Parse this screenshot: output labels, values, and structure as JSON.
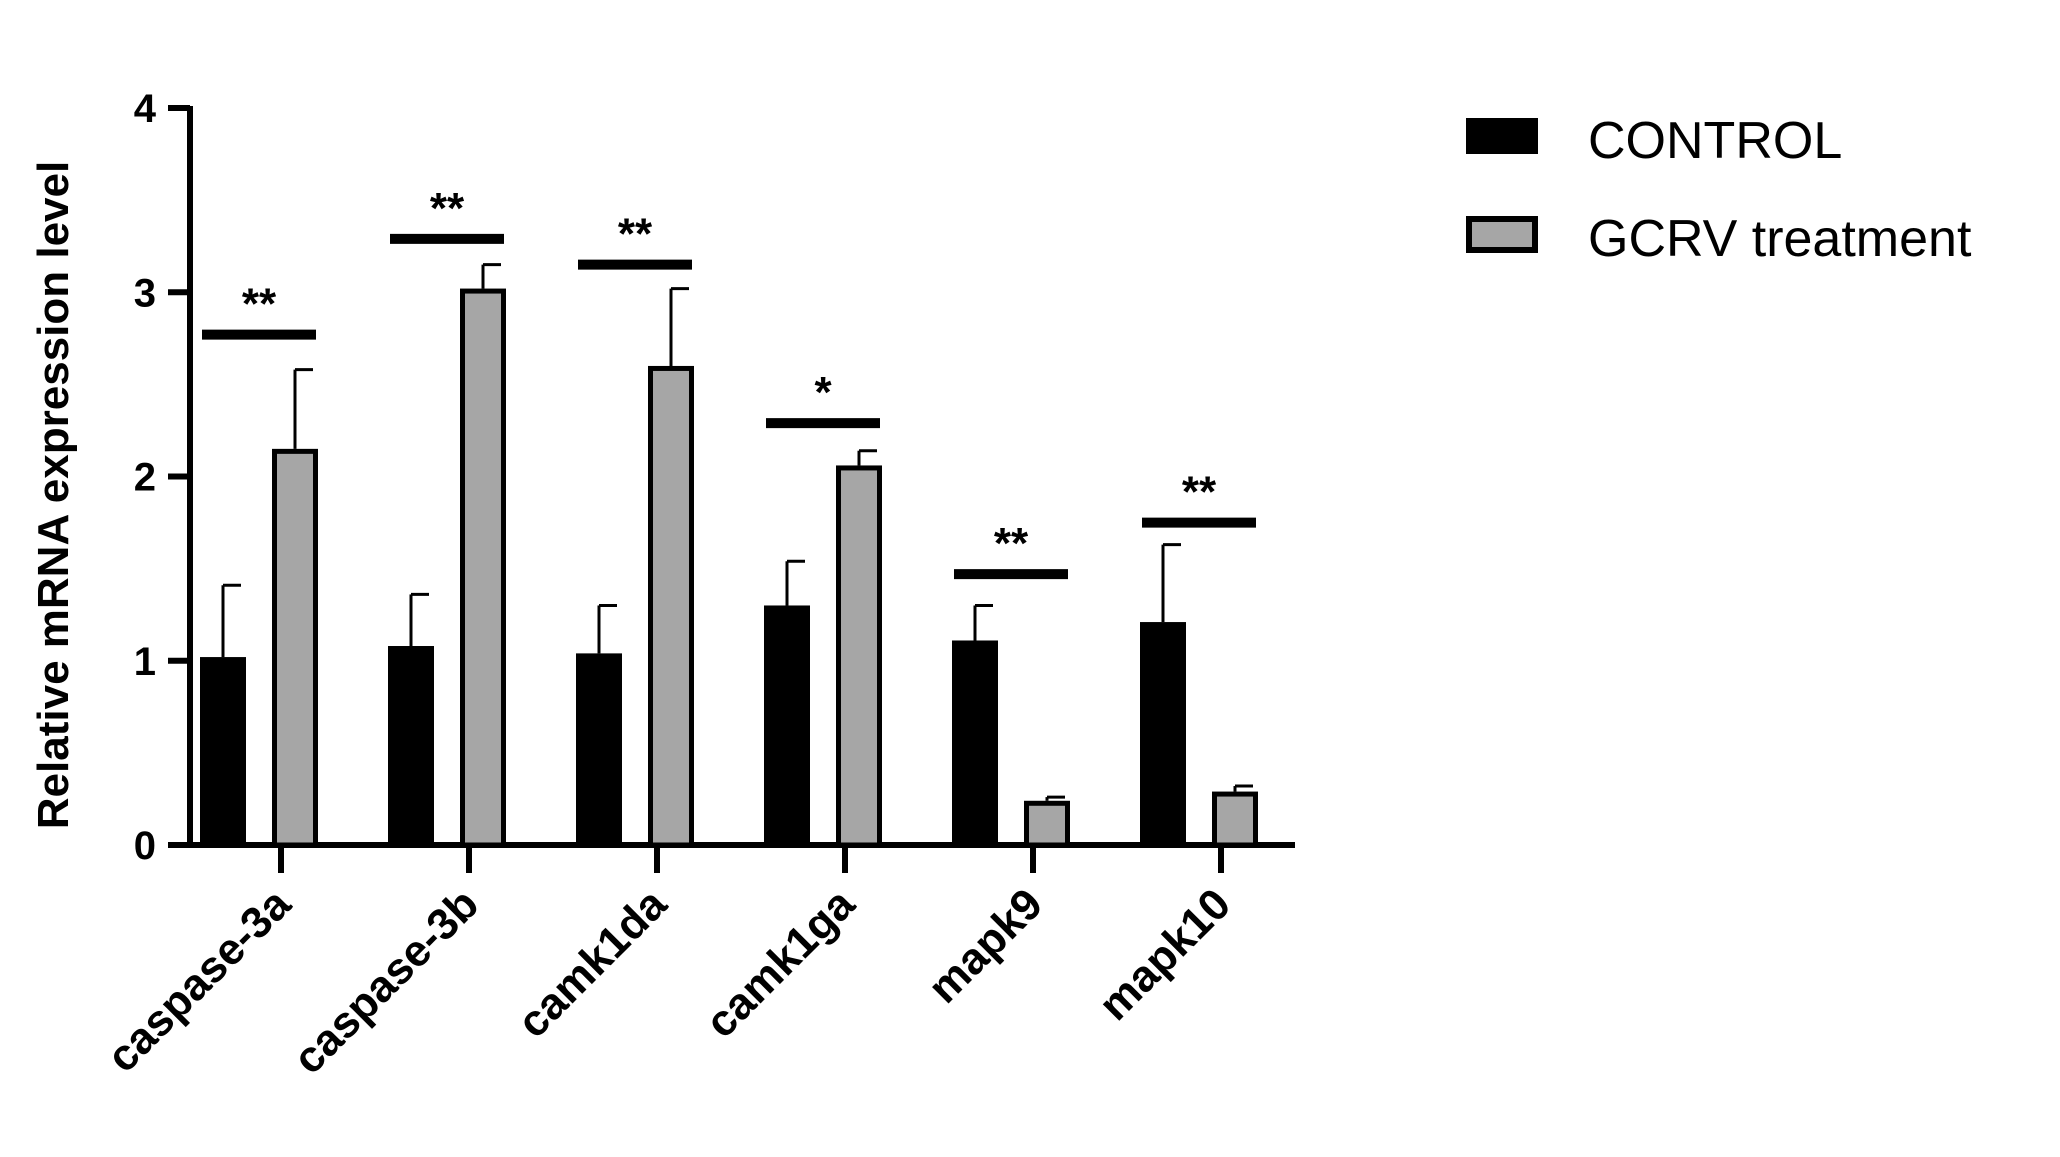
{
  "chart_data": {
    "type": "bar",
    "ylabel": "Relative mRNA expression level",
    "xlabel": "",
    "ylim": [
      0,
      4
    ],
    "yticks": [
      0,
      1,
      2,
      3,
      4
    ],
    "categories": [
      "caspase-3a",
      "caspase-3b",
      "camk1da",
      "camk1ga",
      "mapk9",
      "mapk10"
    ],
    "series": [
      {
        "name": "CONTROL",
        "color": "#000000",
        "values": [
          1.02,
          1.08,
          1.04,
          1.3,
          1.11,
          1.21
        ],
        "errors": [
          0.39,
          0.28,
          0.26,
          0.24,
          0.19,
          0.42
        ]
      },
      {
        "name": "GCRV treatment",
        "color": "#a6a6a6",
        "values": [
          2.15,
          3.02,
          2.6,
          2.06,
          0.24,
          0.29
        ],
        "errors": [
          0.43,
          0.13,
          0.42,
          0.08,
          0.02,
          0.03
        ]
      }
    ],
    "significance": [
      {
        "label": "**",
        "level": 2.77
      },
      {
        "label": "**",
        "level": 3.29
      },
      {
        "label": "**",
        "level": 3.15
      },
      {
        "label": "*",
        "level": 2.29
      },
      {
        "label": "**",
        "level": 1.47
      },
      {
        "label": "**",
        "level": 1.75
      }
    ],
    "legend_position": "top-right",
    "grid": false
  }
}
